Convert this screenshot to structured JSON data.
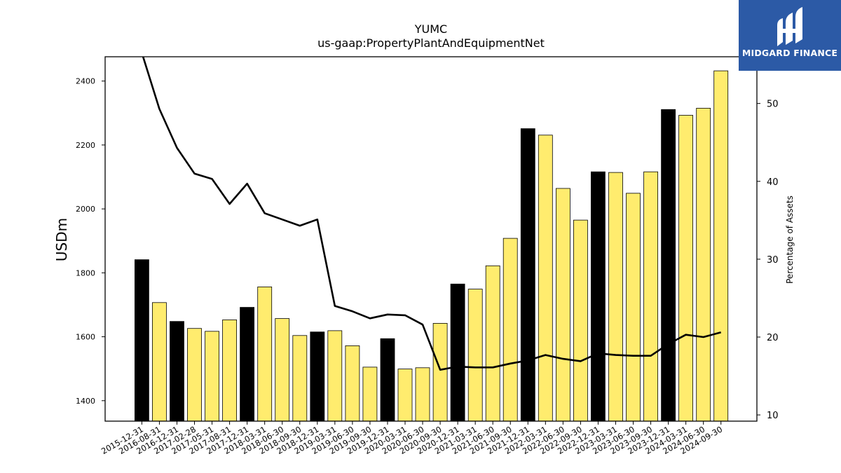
{
  "chart_data": {
    "type": "bar",
    "title": "YUMC",
    "subtitle": "us-gaap:PropertyPlantAndEquipmentNet",
    "ylabel": "USDm",
    "y2label": "Percentage of Assets",
    "ylim": [
      1336,
      2476
    ],
    "y2lim": [
      9.2,
      56.0
    ],
    "yticks": [
      1400,
      1600,
      1800,
      2000,
      2200,
      2400
    ],
    "y2ticks": [
      10,
      20,
      30,
      40,
      50
    ],
    "categories": [
      "2015-12-31",
      "2016-08-31",
      "2016-12-31",
      "2017-02-28",
      "2017-05-31",
      "2017-08-31",
      "2017-12-31",
      "2018-03-31",
      "2018-06-30",
      "2018-09-30",
      "2018-12-31",
      "2019-03-31",
      "2019-06-30",
      "2019-09-30",
      "2019-12-31",
      "2020-03-31",
      "2020-06-30",
      "2020-09-30",
      "2020-12-31",
      "2021-03-31",
      "2021-06-30",
      "2021-09-30",
      "2021-12-31",
      "2022-03-31",
      "2022-06-30",
      "2022-09-30",
      "2022-12-31",
      "2023-03-31",
      "2023-06-30",
      "2023-09-30",
      "2023-12-31",
      "2024-03-31",
      "2024-06-30",
      "2024-09-30"
    ],
    "series": [
      {
        "values": [
          1841,
          1707,
          1648,
          1626,
          1617,
          1653,
          1692,
          1756,
          1657,
          1604,
          1615,
          1619,
          1572,
          1505,
          1594,
          1499,
          1503,
          1642,
          1765,
          1749,
          1822,
          1908,
          2251,
          2231,
          2064,
          1965,
          2116,
          2114,
          2049,
          2116,
          2311,
          2293,
          2315,
          2432
        ],
        "bar_colors": [
          "#000000",
          "#ffec6e",
          "#000000",
          "#ffec6e",
          "#ffec6e",
          "#ffec6e",
          "#000000",
          "#ffec6e",
          "#ffec6e",
          "#ffec6e",
          "#000000",
          "#ffec6e",
          "#ffec6e",
          "#ffec6e",
          "#000000",
          "#ffec6e",
          "#ffec6e",
          "#ffec6e",
          "#000000",
          "#ffec6e",
          "#ffec6e",
          "#ffec6e",
          "#000000",
          "#ffec6e",
          "#ffec6e",
          "#ffec6e",
          "#000000",
          "#ffec6e",
          "#ffec6e",
          "#ffec6e",
          "#000000",
          "#ffec6e",
          "#ffec6e",
          "#ffec6e"
        ]
      },
      {
        "type": "line",
        "axis": "right",
        "color": "#000000",
        "values": [
          56.5,
          49.3,
          44.3,
          41.0,
          40.3,
          37.1,
          39.7,
          35.9,
          35.1,
          34.3,
          35.1,
          24.0,
          23.3,
          22.4,
          22.9,
          22.8,
          21.6,
          15.8,
          16.2,
          16.1,
          16.1,
          16.6,
          17.0,
          17.7,
          17.2,
          16.9,
          17.9,
          17.7,
          17.6,
          17.6,
          19.1,
          20.3,
          20.0,
          20.6
        ]
      }
    ],
    "grid": false
  },
  "logo": {
    "text": "MIDGARD FINANCE",
    "color": "#2c5aa6"
  }
}
